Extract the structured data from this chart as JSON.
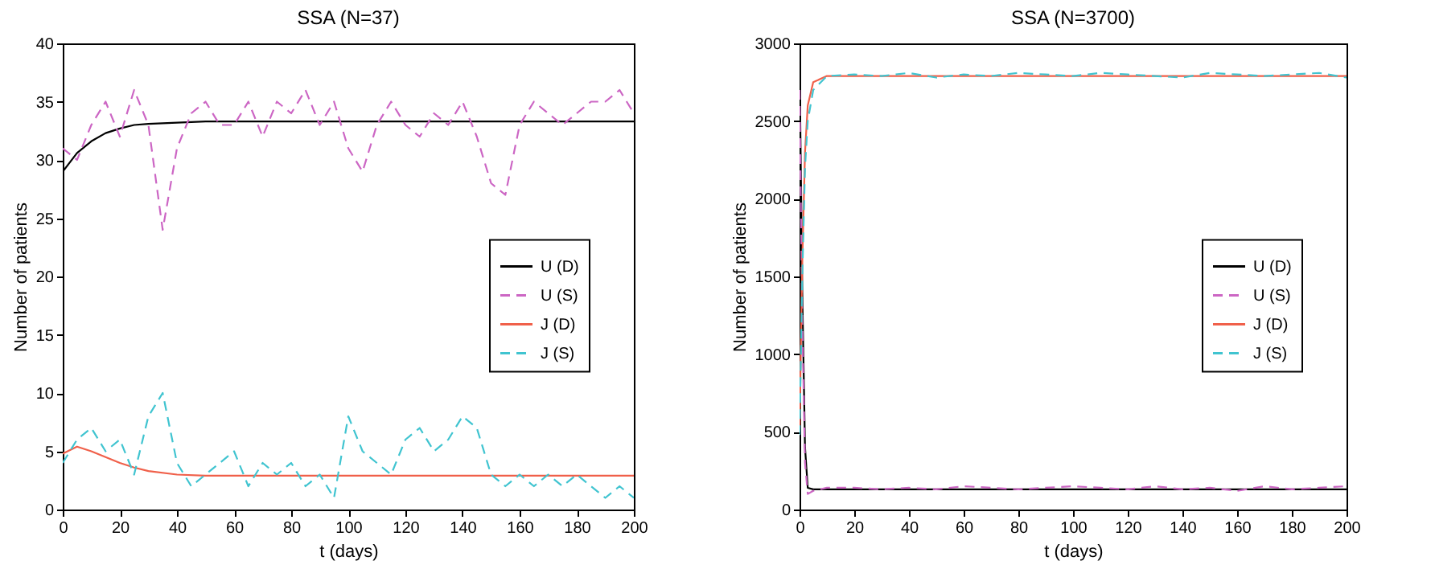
{
  "chart_data": [
    {
      "type": "line",
      "title": "SSA (N=37)",
      "xlabel": "t (days)",
      "ylabel": "Number of patients",
      "xlim": [
        0,
        200
      ],
      "ylim": [
        0,
        40
      ],
      "xticks": [
        0,
        20,
        40,
        60,
        80,
        100,
        120,
        140,
        160,
        180,
        200
      ],
      "yticks": [
        0,
        5,
        10,
        15,
        20,
        25,
        30,
        35,
        40
      ],
      "grid": false,
      "legend": "right",
      "marker": "none",
      "series": [
        {
          "name": "U (D)",
          "color": "#000000",
          "line_style": "solid",
          "x": [
            0,
            5,
            10,
            15,
            20,
            25,
            30,
            40,
            50,
            60,
            100,
            150,
            200
          ],
          "values": [
            29,
            30.6,
            31.6,
            32.3,
            32.7,
            33,
            33.1,
            33.2,
            33.3,
            33.3,
            33.3,
            33.3,
            33.3
          ]
        },
        {
          "name": "U (S)",
          "color": "#cc66c4",
          "line_style": "dashed",
          "x": [
            0,
            5,
            10,
            15,
            20,
            25,
            30,
            35,
            40,
            45,
            50,
            55,
            60,
            65,
            70,
            75,
            80,
            85,
            90,
            95,
            100,
            105,
            110,
            115,
            120,
            125,
            130,
            135,
            140,
            145,
            150,
            155,
            160,
            165,
            170,
            175,
            180,
            185,
            190,
            195,
            200
          ],
          "values": [
            31,
            30,
            33,
            35,
            32,
            36,
            33,
            24,
            31,
            34,
            35,
            33,
            33,
            35,
            32,
            35,
            34,
            36,
            33,
            35,
            31,
            29,
            33,
            35,
            33,
            32,
            34,
            33,
            35,
            32,
            28,
            27,
            33,
            35,
            34,
            33,
            34,
            35,
            35,
            36,
            34
          ]
        },
        {
          "name": "J (D)",
          "color": "#f0604a",
          "line_style": "solid",
          "x": [
            0,
            5,
            10,
            15,
            20,
            25,
            30,
            40,
            50,
            60,
            100,
            150,
            200
          ],
          "values": [
            4.8,
            5.4,
            5,
            4.5,
            4,
            3.6,
            3.3,
            3,
            2.9,
            2.9,
            2.9,
            2.9,
            2.9
          ]
        },
        {
          "name": "J (S)",
          "color": "#40c4d0",
          "line_style": "dashed",
          "x": [
            0,
            5,
            10,
            15,
            20,
            25,
            30,
            35,
            40,
            45,
            50,
            55,
            60,
            65,
            70,
            75,
            80,
            85,
            90,
            95,
            100,
            105,
            110,
            115,
            120,
            125,
            130,
            135,
            140,
            145,
            150,
            155,
            160,
            165,
            170,
            175,
            180,
            185,
            190,
            195,
            200
          ],
          "values": [
            4,
            6,
            7,
            5,
            6,
            3,
            8,
            10,
            4,
            2,
            3,
            4,
            5,
            2,
            4,
            3,
            4,
            2,
            3,
            1,
            8,
            5,
            4,
            3,
            6,
            7,
            5,
            6,
            8,
            7,
            3,
            2,
            3,
            2,
            3,
            2,
            3,
            2,
            1,
            2,
            1
          ]
        }
      ]
    },
    {
      "type": "line",
      "title": "SSA (N=3700)",
      "xlabel": "t (days)",
      "ylabel": "Number of patients",
      "xlim": [
        0,
        200
      ],
      "ylim": [
        0,
        3000
      ],
      "xticks": [
        0,
        20,
        40,
        60,
        80,
        100,
        120,
        140,
        160,
        180,
        200
      ],
      "yticks": [
        0,
        500,
        1000,
        1500,
        2000,
        2500,
        3000
      ],
      "grid": false,
      "legend": "right",
      "marker": "none",
      "series": [
        {
          "name": "U (D)",
          "color": "#000000",
          "line_style": "solid",
          "x": [
            0,
            1,
            2,
            3,
            5,
            10,
            200
          ],
          "values": [
            2900,
            1400,
            400,
            140,
            130,
            130,
            130
          ]
        },
        {
          "name": "U (S)",
          "color": "#cc66c4",
          "line_style": "dashed",
          "x": [
            0,
            1,
            2,
            3,
            5,
            10,
            20,
            30,
            40,
            50,
            60,
            70,
            80,
            90,
            100,
            110,
            120,
            130,
            140,
            150,
            160,
            170,
            180,
            190,
            200
          ],
          "values": [
            2700,
            1200,
            300,
            100,
            120,
            140,
            140,
            130,
            140,
            130,
            150,
            140,
            130,
            140,
            150,
            140,
            130,
            150,
            130,
            140,
            120,
            150,
            130,
            140,
            150
          ]
        },
        {
          "name": "J (D)",
          "color": "#f0604a",
          "line_style": "solid",
          "x": [
            0,
            1,
            2,
            3,
            5,
            10,
            200
          ],
          "values": [
            500,
            1600,
            2300,
            2600,
            2750,
            2790,
            2790
          ]
        },
        {
          "name": "J (S)",
          "color": "#40c4d0",
          "line_style": "dashed",
          "x": [
            0,
            1,
            2,
            3,
            5,
            10,
            20,
            30,
            40,
            50,
            60,
            70,
            80,
            90,
            100,
            110,
            120,
            130,
            140,
            150,
            160,
            170,
            180,
            190,
            200
          ],
          "values": [
            480,
            1500,
            2200,
            2500,
            2700,
            2790,
            2800,
            2790,
            2810,
            2780,
            2800,
            2790,
            2810,
            2800,
            2790,
            2810,
            2800,
            2790,
            2780,
            2810,
            2800,
            2790,
            2800,
            2810,
            2780
          ]
        }
      ]
    }
  ]
}
